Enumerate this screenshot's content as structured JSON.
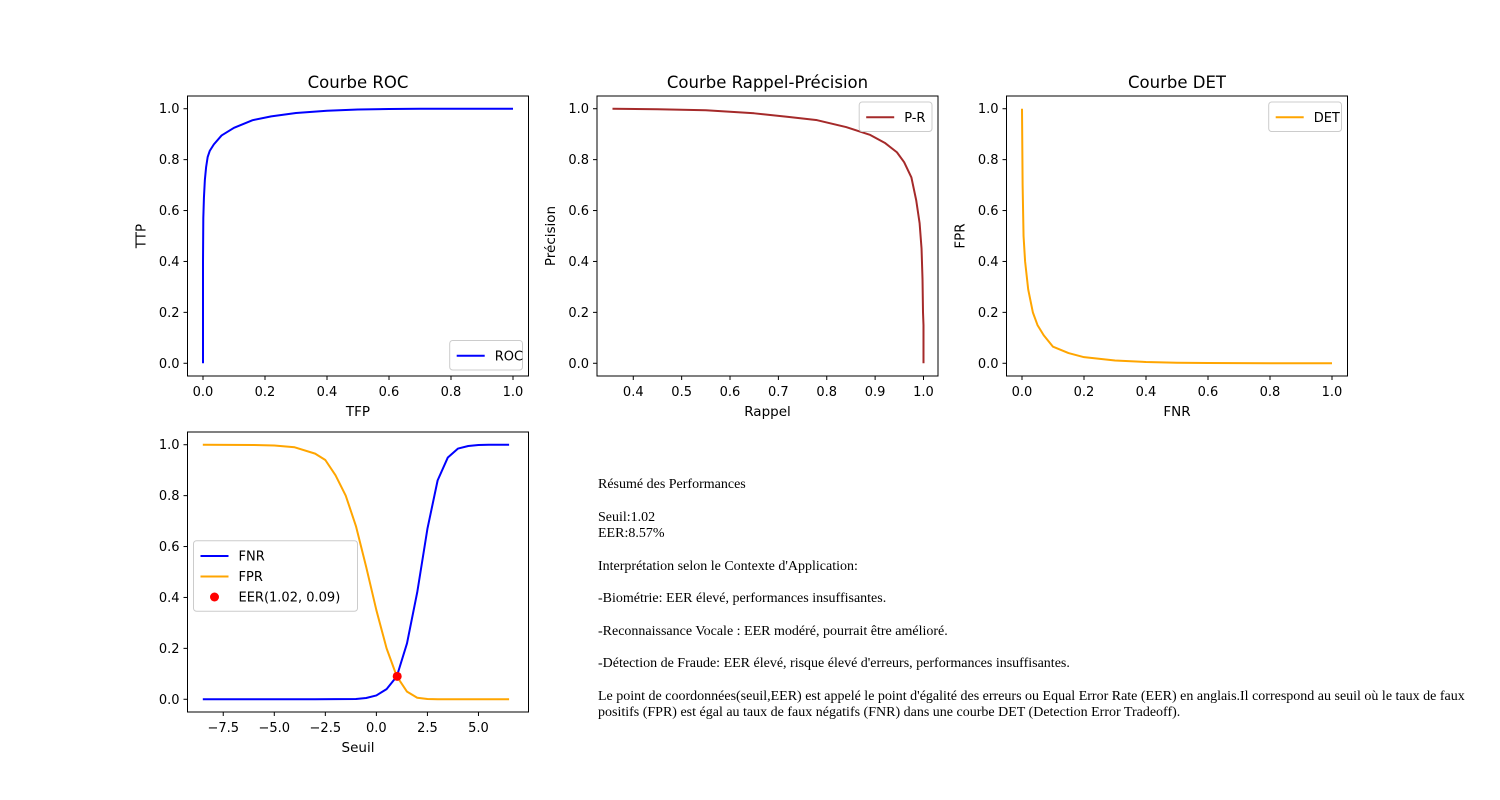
{
  "colors": {
    "roc": "#0000ff",
    "pr": "#a52a2a",
    "det": "#ffa500",
    "fnr": "#0000ff",
    "fpr": "#ffa500",
    "eer": "#ff0000"
  },
  "chart_data": [
    {
      "type": "line",
      "title": "Courbe ROC",
      "xlabel": "TFP",
      "ylabel": "TTP",
      "xlim": [
        -0.05,
        1.05
      ],
      "ylim": [
        -0.05,
        1.05
      ],
      "xticks": [
        0.0,
        0.2,
        0.4,
        0.6,
        0.8,
        1.0
      ],
      "yticks": [
        0.0,
        0.2,
        0.4,
        0.6,
        0.8,
        1.0
      ],
      "tick_decimals": 1,
      "legend": "lower right",
      "series": [
        {
          "name": "ROC",
          "color": "#0000ff",
          "x": [
            0.0,
            0.0,
            0.001,
            0.003,
            0.006,
            0.01,
            0.015,
            0.022,
            0.035,
            0.06,
            0.1,
            0.16,
            0.22,
            0.3,
            0.4,
            0.5,
            0.6,
            0.7,
            0.8,
            0.9,
            1.0
          ],
          "y": [
            0.0,
            0.4,
            0.57,
            0.65,
            0.72,
            0.77,
            0.81,
            0.835,
            0.86,
            0.895,
            0.925,
            0.955,
            0.97,
            0.983,
            0.992,
            0.997,
            0.999,
            1.0,
            1.0,
            1.0,
            1.0
          ]
        }
      ]
    },
    {
      "type": "line",
      "title": "Courbe Rappel-Précision",
      "xlabel": "Rappel",
      "ylabel": "Précision",
      "xlim": [
        0.325,
        1.03
      ],
      "ylim": [
        -0.05,
        1.05
      ],
      "xticks": [
        0.4,
        0.5,
        0.6,
        0.7,
        0.8,
        0.9,
        1.0
      ],
      "yticks": [
        0.0,
        0.2,
        0.4,
        0.6,
        0.8,
        1.0
      ],
      "tick_decimals": 1,
      "legend": "upper right",
      "series": [
        {
          "name": "P-R",
          "color": "#a52a2a",
          "x": [
            0.357,
            0.45,
            0.55,
            0.65,
            0.72,
            0.78,
            0.84,
            0.89,
            0.92,
            0.945,
            0.96,
            0.975,
            0.985,
            0.992,
            0.996,
            0.998,
            0.999,
            1.0,
            1.0
          ],
          "y": [
            1.0,
            0.998,
            0.994,
            0.982,
            0.968,
            0.955,
            0.928,
            0.897,
            0.866,
            0.829,
            0.79,
            0.73,
            0.64,
            0.55,
            0.45,
            0.33,
            0.2,
            0.15,
            0.0
          ]
        }
      ]
    },
    {
      "type": "line",
      "title": "Courbe DET",
      "xlabel": "FNR",
      "ylabel": "FPR",
      "xlim": [
        -0.05,
        1.05
      ],
      "ylim": [
        -0.05,
        1.05
      ],
      "xticks": [
        0.0,
        0.2,
        0.4,
        0.6,
        0.8,
        1.0
      ],
      "yticks": [
        0.0,
        0.2,
        0.4,
        0.6,
        0.8,
        1.0
      ],
      "tick_decimals": 1,
      "legend": "upper right",
      "series": [
        {
          "name": "DET",
          "color": "#ffa500",
          "x": [
            0.0,
            0.002,
            0.005,
            0.01,
            0.02,
            0.035,
            0.05,
            0.07,
            0.1,
            0.15,
            0.2,
            0.3,
            0.4,
            0.5,
            0.6,
            0.8,
            1.0
          ],
          "y": [
            1.0,
            0.7,
            0.5,
            0.4,
            0.29,
            0.2,
            0.15,
            0.11,
            0.065,
            0.04,
            0.024,
            0.011,
            0.005,
            0.002,
            0.001,
            0.0,
            0.0
          ]
        }
      ]
    },
    {
      "type": "line",
      "title": "",
      "xlabel": "Seuil",
      "ylabel": "",
      "xlim": [
        -9.25,
        7.45
      ],
      "ylim": [
        -0.05,
        1.05
      ],
      "xticks": [
        -7.5,
        -5.0,
        -2.5,
        0.0,
        2.5,
        5.0
      ],
      "yticks": [
        0.0,
        0.2,
        0.4,
        0.6,
        0.8,
        1.0
      ],
      "tick_decimals": 1,
      "legend": "center left",
      "series": [
        {
          "name": "FNR",
          "color": "#0000ff",
          "x": [
            -8.5,
            -6.0,
            -3.0,
            -1.0,
            -0.5,
            0.0,
            0.5,
            1.0,
            1.5,
            2.0,
            2.5,
            3.0,
            3.5,
            4.0,
            4.5,
            5.0,
            5.5,
            6.0,
            6.5
          ],
          "y": [
            0.0,
            0.0,
            0.0,
            0.001,
            0.005,
            0.015,
            0.04,
            0.09,
            0.22,
            0.42,
            0.67,
            0.86,
            0.95,
            0.985,
            0.995,
            0.999,
            1.0,
            1.0,
            1.0
          ]
        },
        {
          "name": "FPR",
          "color": "#ffa500",
          "x": [
            -8.5,
            -6.0,
            -5.0,
            -4.0,
            -3.0,
            -2.5,
            -2.0,
            -1.5,
            -1.0,
            -0.5,
            0.0,
            0.5,
            1.0,
            1.5,
            2.0,
            2.5,
            3.0,
            4.0,
            6.5
          ],
          "y": [
            1.0,
            0.999,
            0.997,
            0.99,
            0.965,
            0.94,
            0.88,
            0.8,
            0.68,
            0.52,
            0.35,
            0.2,
            0.09,
            0.03,
            0.006,
            0.001,
            0.0,
            0.0,
            0.0
          ]
        }
      ],
      "points": [
        {
          "name": "EER(1.02, 0.09)",
          "x": 1.02,
          "y": 0.09,
          "color": "#ff0000"
        }
      ]
    }
  ],
  "summary": {
    "heading": "Résumé des Performances",
    "threshold_line": "Seuil:1.02",
    "eer_line": "EER:8.57%",
    "context_heading": "Interprétation selon le Contexte d'Application:",
    "biometrics": "-Biométrie: EER élevé, performances insuffisantes.",
    "voice": "-Reconnaissance Vocale : EER modéré, pourrait être amélioré.",
    "fraud": "-Détection de Fraude: EER élevé, risque élevé d'erreurs, performances insuffisantes.",
    "explanation": "Le point de coordonnées(seuil,EER) est appelé le point d'égalité des erreurs ou Equal Error Rate (EER) en anglais.Il correspond au seuil où le taux de faux positifs (FPR) est égal au taux de faux négatifs (FNR) dans une courbe DET (Detection Error Tradeoff)."
  }
}
